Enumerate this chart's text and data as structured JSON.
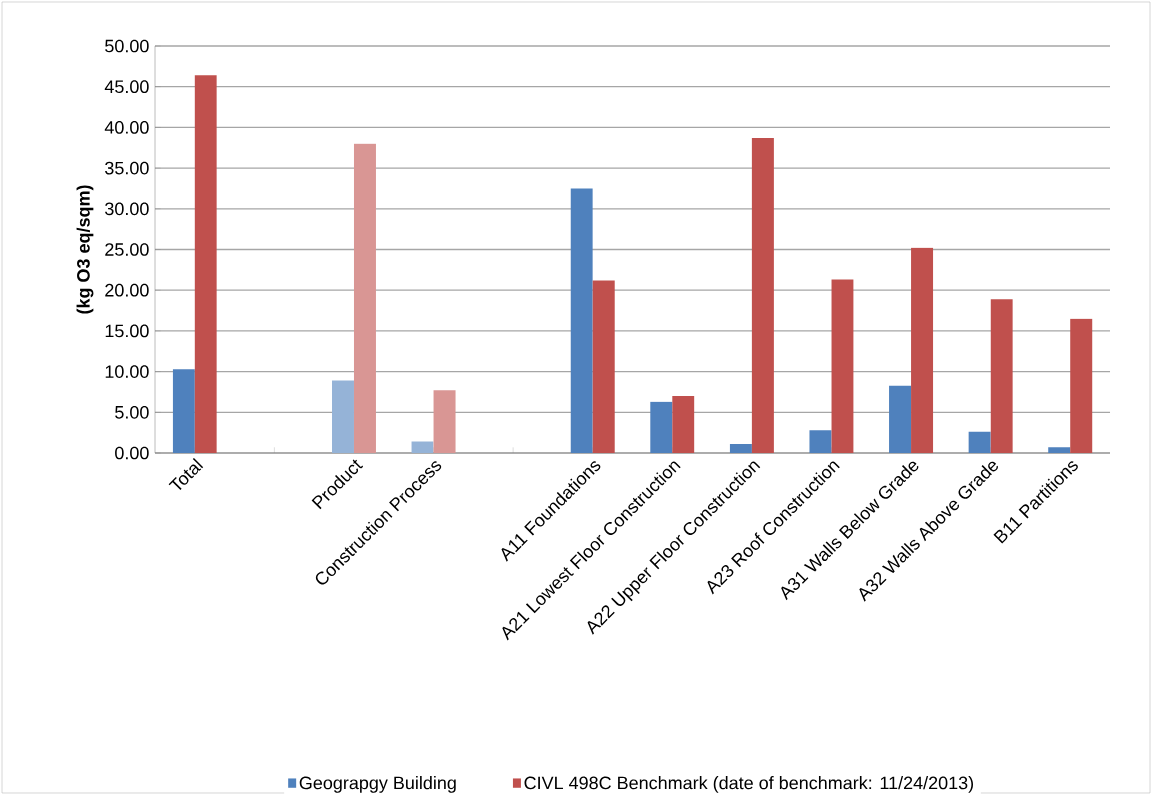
{
  "chart_data": {
    "type": "bar",
    "ylabel": "(kg O3 eq/sqm)",
    "categories": [
      "Total",
      null,
      "Product",
      "Construction Process",
      null,
      "A11 Foundations",
      "A21 Lowest Floor Construction",
      "A22 Upper Floor Construction",
      "A23 Roof Construction",
      "A31 Walls Below Grade",
      "A32 Walls Above Grade",
      "B11 Partitions"
    ],
    "series": [
      {
        "name": "Geograpgy Building",
        "color": "#4f81bd",
        "colors": [
          "#4f81bd",
          "#4f81bd",
          "#95b3d7",
          "#95b3d7",
          "#4f81bd",
          "#4f81bd",
          "#4f81bd",
          "#4f81bd",
          "#4f81bd",
          "#4f81bd",
          "#4f81bd",
          "#4f81bd"
        ],
        "values": [
          10.3,
          null,
          8.9,
          1.4,
          null,
          32.5,
          6.3,
          1.1,
          2.8,
          8.3,
          2.6,
          0.7
        ]
      },
      {
        "name": "CIVL 498C Benchmark (date of benchmark: 11/24/2013)",
        "color": "#c0504d",
        "colors": [
          "#c0504d",
          "#c0504d",
          "#d99694",
          "#d99694",
          "#c0504d",
          "#c0504d",
          "#c0504d",
          "#c0504d",
          "#c0504d",
          "#c0504d",
          "#c0504d",
          "#c0504d"
        ],
        "values": [
          46.4,
          null,
          38.0,
          7.7,
          null,
          21.2,
          7.0,
          38.7,
          21.3,
          25.2,
          18.9,
          16.5
        ]
      }
    ],
    "ylim": [
      0,
      50
    ],
    "yticks": [
      {
        "value": 0,
        "label": "0.00"
      },
      {
        "value": 5,
        "label": "5.00"
      },
      {
        "value": 10,
        "label": "10.00"
      },
      {
        "value": 15,
        "label": "15.00"
      },
      {
        "value": 20,
        "label": "20.00"
      },
      {
        "value": 25,
        "label": "25.00"
      },
      {
        "value": 30,
        "label": "30.00"
      },
      {
        "value": 35,
        "label": "35.00"
      },
      {
        "value": 40,
        "label": "40.00"
      },
      {
        "value": 45,
        "label": "45.00"
      },
      {
        "value": 50,
        "label": "50.00"
      }
    ],
    "grid": "y",
    "legend": "bottom"
  }
}
